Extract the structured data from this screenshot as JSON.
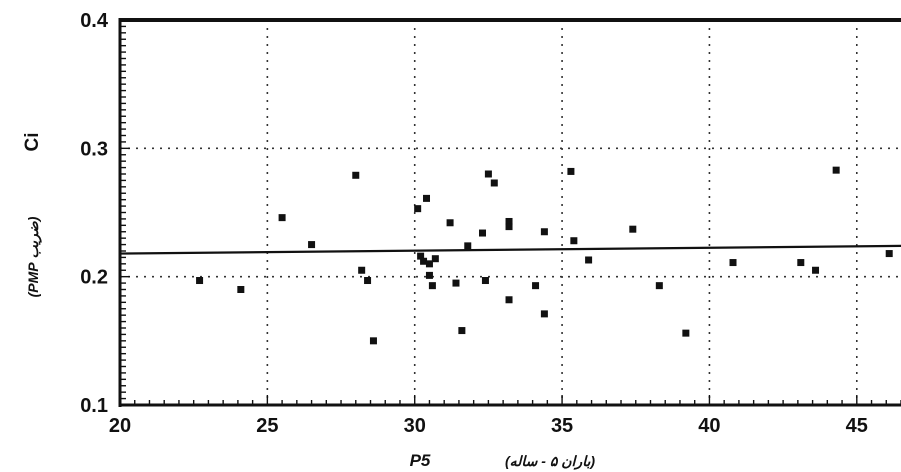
{
  "chart_data": {
    "type": "scatter",
    "xlabel_main": "P5",
    "xlabel_note": "(باران ۵ - ساله)",
    "ylabel_main": "Ci",
    "ylabel_note": "(ضریب PMP)",
    "xlim": [
      20,
      46.5
    ],
    "ylim": [
      0.1,
      0.4
    ],
    "x_ticks": [
      20,
      25,
      30,
      35,
      40,
      45
    ],
    "y_ticks": [
      0.1,
      0.2,
      0.3,
      0.4
    ],
    "x_tick_labels": [
      "20",
      "25",
      "30",
      "35",
      "40",
      "45"
    ],
    "y_tick_labels": [
      "0.1",
      "0.2",
      "0.3",
      "0.4"
    ],
    "grid": "dotted",
    "trend_line": {
      "x": [
        20,
        46.5
      ],
      "y": [
        0.218,
        0.224
      ]
    },
    "series": [
      {
        "points": [
          [
            22.7,
            0.197
          ],
          [
            24.1,
            0.19
          ],
          [
            25.5,
            0.246
          ],
          [
            26.5,
            0.225
          ],
          [
            28.0,
            0.279
          ],
          [
            28.2,
            0.205
          ],
          [
            28.4,
            0.197
          ],
          [
            28.6,
            0.15
          ],
          [
            30.1,
            0.253
          ],
          [
            30.2,
            0.216
          ],
          [
            30.3,
            0.212
          ],
          [
            30.4,
            0.261
          ],
          [
            30.5,
            0.21
          ],
          [
            30.5,
            0.201
          ],
          [
            30.6,
            0.193
          ],
          [
            30.7,
            0.214
          ],
          [
            31.2,
            0.242
          ],
          [
            31.4,
            0.195
          ],
          [
            31.6,
            0.158
          ],
          [
            31.8,
            0.224
          ],
          [
            32.3,
            0.234
          ],
          [
            32.4,
            0.197
          ],
          [
            32.5,
            0.28
          ],
          [
            32.7,
            0.273
          ],
          [
            33.2,
            0.243
          ],
          [
            33.2,
            0.239
          ],
          [
            33.2,
            0.182
          ],
          [
            34.1,
            0.193
          ],
          [
            34.4,
            0.235
          ],
          [
            34.4,
            0.171
          ],
          [
            35.3,
            0.282
          ],
          [
            35.4,
            0.228
          ],
          [
            35.9,
            0.213
          ],
          [
            37.4,
            0.237
          ],
          [
            38.3,
            0.193
          ],
          [
            39.2,
            0.156
          ],
          [
            40.8,
            0.211
          ],
          [
            43.1,
            0.211
          ],
          [
            43.6,
            0.205
          ],
          [
            44.3,
            0.283
          ],
          [
            46.1,
            0.218
          ]
        ]
      }
    ]
  }
}
